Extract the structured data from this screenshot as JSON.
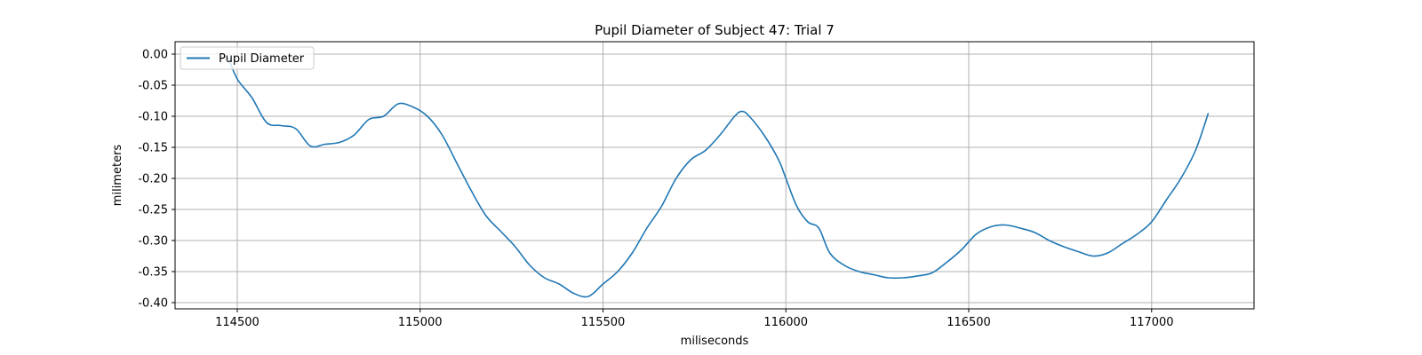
{
  "chart_data": {
    "type": "line",
    "title": "Pupil Diameter of Subject 47: Trial 7",
    "xlabel": "miliseconds",
    "ylabel": "milimeters",
    "xlim": [
      114330,
      117280
    ],
    "ylim": [
      -0.41,
      0.02
    ],
    "xticks": [
      114500,
      115000,
      115500,
      116000,
      116500,
      117000
    ],
    "xtick_labels": [
      "114500",
      "115000",
      "115500",
      "116000",
      "116500",
      "117000"
    ],
    "yticks": [
      0.0,
      -0.05,
      -0.1,
      -0.15,
      -0.2,
      -0.25,
      -0.3,
      -0.35,
      -0.4
    ],
    "ytick_labels": [
      "0.00",
      "-0.05",
      "-0.10",
      "-0.15",
      "-0.20",
      "-0.25",
      "-0.30",
      "-0.35",
      "-0.40"
    ],
    "grid": true,
    "legend_position": "upper-left",
    "series": [
      {
        "name": "Pupil Diameter",
        "color": "#1f77b4",
        "x": [
          114475,
          114500,
          114540,
          114580,
          114620,
          114660,
          114700,
          114740,
          114780,
          114820,
          114860,
          114900,
          114940,
          114980,
          115020,
          115060,
          115100,
          115140,
          115180,
          115220,
          115260,
          115300,
          115340,
          115380,
          115420,
          115460,
          115500,
          115540,
          115580,
          115620,
          115660,
          115700,
          115740,
          115780,
          115820,
          115860,
          115880,
          115900,
          115940,
          115980,
          116000,
          116030,
          116060,
          116090,
          116120,
          116160,
          116200,
          116240,
          116280,
          116320,
          116360,
          116400,
          116440,
          116480,
          116520,
          116560,
          116600,
          116640,
          116680,
          116720,
          116760,
          116800,
          116840,
          116880,
          116920,
          116960,
          117000,
          117040,
          117080,
          117120,
          117155
        ],
        "y": [
          -0.005,
          -0.04,
          -0.07,
          -0.11,
          -0.115,
          -0.12,
          -0.148,
          -0.145,
          -0.142,
          -0.13,
          -0.105,
          -0.1,
          -0.08,
          -0.085,
          -0.1,
          -0.13,
          -0.175,
          -0.22,
          -0.26,
          -0.285,
          -0.31,
          -0.34,
          -0.36,
          -0.37,
          -0.385,
          -0.39,
          -0.37,
          -0.35,
          -0.32,
          -0.28,
          -0.245,
          -0.2,
          -0.17,
          -0.155,
          -0.13,
          -0.1,
          -0.092,
          -0.1,
          -0.13,
          -0.17,
          -0.2,
          -0.245,
          -0.27,
          -0.28,
          -0.32,
          -0.34,
          -0.35,
          -0.355,
          -0.36,
          -0.36,
          -0.357,
          -0.352,
          -0.335,
          -0.315,
          -0.29,
          -0.278,
          -0.275,
          -0.28,
          -0.287,
          -0.3,
          -0.31,
          -0.318,
          -0.325,
          -0.32,
          -0.305,
          -0.29,
          -0.27,
          -0.235,
          -0.2,
          -0.155,
          -0.095
        ]
      }
    ]
  }
}
